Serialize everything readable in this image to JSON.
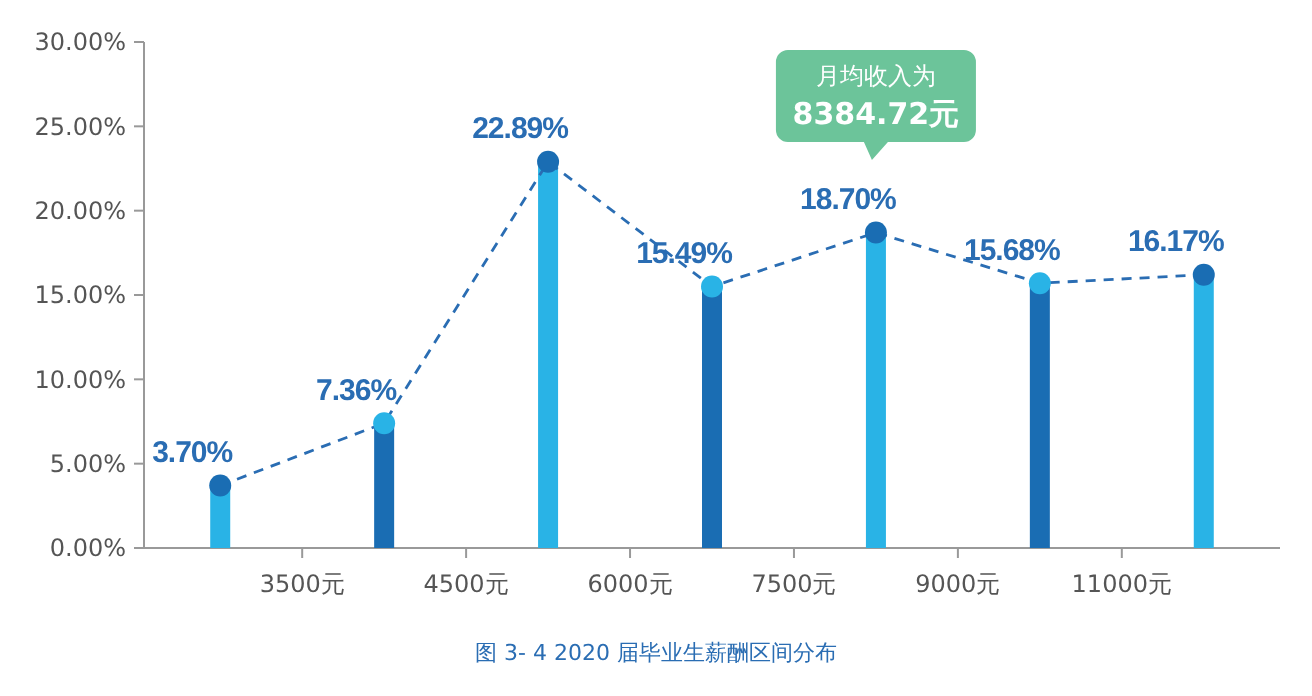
{
  "chart_data": {
    "type": "bar",
    "categories": [
      null,
      "3500元",
      null,
      "4500元",
      null,
      "6000元",
      null,
      "7500元",
      null,
      "9000元",
      null,
      "11000元",
      null
    ],
    "ylim": [
      0,
      30
    ],
    "yticks": [
      {
        "value": 0,
        "label": "0.00%"
      },
      {
        "value": 5,
        "label": "5.00%"
      },
      {
        "value": 10,
        "label": "10.00%"
      },
      {
        "value": 15,
        "label": "15.00%"
      },
      {
        "value": 20,
        "label": "20.00%"
      },
      {
        "value": 25,
        "label": "25.00%"
      },
      {
        "value": 30,
        "label": "30.00%"
      }
    ],
    "series": [
      {
        "colors": [
          "#29b3e6",
          null,
          "#1a6db3",
          null,
          "#29b3e6",
          null,
          "#1a6db3",
          null,
          "#29b3e6",
          null,
          "#1a6db3",
          null,
          "#29b3e6"
        ],
        "values": [
          3.7,
          null,
          7.36,
          null,
          22.89,
          null,
          15.49,
          null,
          18.7,
          null,
          15.68,
          null,
          16.17
        ],
        "value_labels": [
          "3.70%",
          null,
          "7.36%",
          null,
          "22.89%",
          null,
          "15.49%",
          null,
          "18.70%",
          null,
          "15.68%",
          null,
          "16.17%"
        ]
      },
      {
        "type": "line",
        "color": "#2a6db3",
        "colors": [
          "#1a6db3",
          null,
          "#29b3e6",
          null,
          "#1a6db3",
          null,
          "#29b3e6",
          null,
          "#1a6db3",
          null,
          "#29b3e6",
          null,
          "#1a6db3"
        ],
        "marker": "circle",
        "line_style": "dashed",
        "values": [
          3.7,
          null,
          7.4,
          null,
          22.9,
          null,
          15.5,
          null,
          18.7,
          null,
          15.7,
          null,
          16.2
        ]
      }
    ],
    "annotations": [
      "月均收入为\n8384.72元",
      "图 3- 4  2020 届毕业生薪酬区间分布"
    ]
  }
}
